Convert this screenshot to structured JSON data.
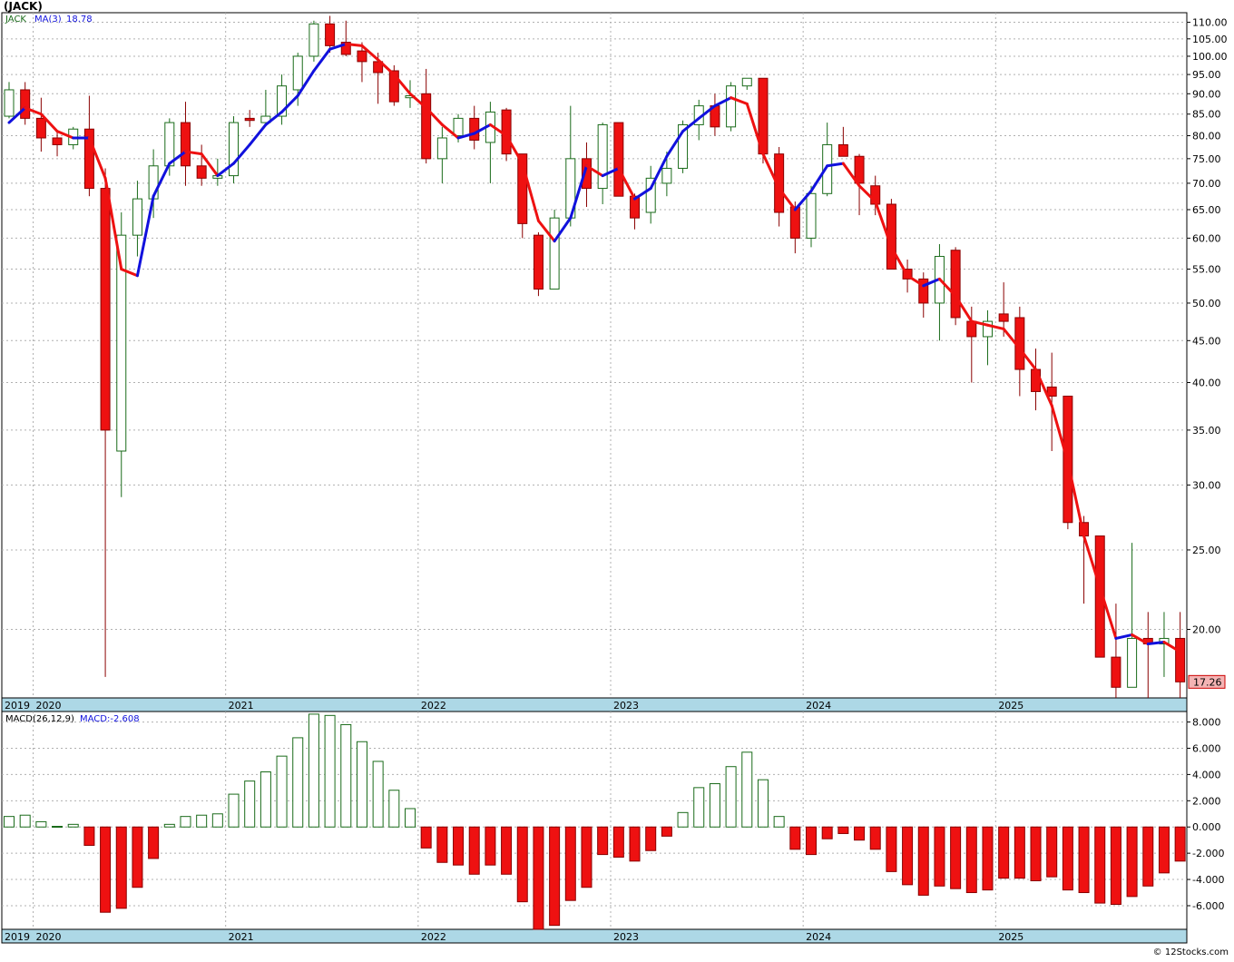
{
  "title": "(JACK)",
  "copyright": "© 12Stocks.com",
  "colors": {
    "up": "#ffffff",
    "up_stroke": "#1a6b1a",
    "down": "#ee1111",
    "down_stroke": "#8a0000",
    "ma_up": "#1111dd",
    "ma_down": "#ee1111",
    "axis_band": "#add8e6",
    "grid": "#b0b0b0",
    "price_tag_bg": "#f4b4b4"
  },
  "chart_data": [
    {
      "type": "candlestick",
      "scale": "log",
      "ylim": [
        16.5,
        113
      ],
      "yticks": [
        110,
        105,
        100,
        95,
        90,
        85,
        80,
        75,
        70,
        65,
        60,
        55,
        50,
        45,
        40,
        35,
        30,
        25,
        20
      ],
      "ytick_labels": [
        "110.00",
        "105.00",
        "100.00",
        "95.00",
        "90.00",
        "85.00",
        "80.00",
        "75.00",
        "70.00",
        "65.00",
        "60.00",
        "55.00",
        "50.00",
        "45.00",
        "40.00",
        "35.00",
        "30.00",
        "25.00",
        "20.00"
      ],
      "legend": {
        "symbol": "JACK",
        "ma_label": "MA(3)",
        "ma_value": "18.78"
      },
      "last_price_label": "17.26",
      "x_labels": [
        "2019",
        "2020",
        "2021",
        "2022",
        "2023",
        "2024",
        "2025"
      ],
      "x_label_months": [
        0,
        2,
        14,
        26,
        38,
        50,
        62
      ],
      "candles": [
        {
          "o": 84.5,
          "h": 93,
          "l": 84,
          "c": 91
        },
        {
          "o": 91,
          "h": 93,
          "l": 82.5,
          "c": 84
        },
        {
          "o": 84,
          "h": 89,
          "l": 76.5,
          "c": 79.5
        },
        {
          "o": 79.5,
          "h": 81,
          "l": 75.5,
          "c": 78
        },
        {
          "o": 78,
          "h": 82,
          "l": 77,
          "c": 81.5
        },
        {
          "o": 81.5,
          "h": 89.5,
          "l": 67.5,
          "c": 69
        },
        {
          "o": 69,
          "h": 73,
          "l": 17.5,
          "c": 35
        },
        {
          "o": 33,
          "h": 64.5,
          "l": 29,
          "c": 60.5
        },
        {
          "o": 60.5,
          "h": 70.5,
          "l": 57,
          "c": 67
        },
        {
          "o": 67,
          "h": 77,
          "l": 63.5,
          "c": 73.5
        },
        {
          "o": 73.5,
          "h": 84,
          "l": 71.5,
          "c": 83
        },
        {
          "o": 83,
          "h": 88,
          "l": 69.5,
          "c": 73.5
        },
        {
          "o": 73.5,
          "h": 78,
          "l": 69.5,
          "c": 71
        },
        {
          "o": 71,
          "h": 75,
          "l": 69.5,
          "c": 71.5
        },
        {
          "o": 71.5,
          "h": 84.5,
          "l": 70,
          "c": 83
        },
        {
          "o": 84,
          "h": 86,
          "l": 82,
          "c": 83.5
        },
        {
          "o": 83,
          "h": 91,
          "l": 83,
          "c": 84.5
        },
        {
          "o": 84.5,
          "h": 95,
          "l": 82.5,
          "c": 92
        },
        {
          "o": 91,
          "h": 101,
          "l": 87,
          "c": 100
        },
        {
          "o": 100,
          "h": 110.5,
          "l": 98.5,
          "c": 109.5
        },
        {
          "o": 109.5,
          "h": 112,
          "l": 101,
          "c": 103
        },
        {
          "o": 104,
          "h": 110.5,
          "l": 100,
          "c": 100.5
        },
        {
          "o": 101.5,
          "h": 104,
          "l": 93,
          "c": 98.5
        },
        {
          "o": 98.5,
          "h": 101,
          "l": 87.5,
          "c": 95.5
        },
        {
          "o": 96,
          "h": 97.5,
          "l": 87,
          "c": 88
        },
        {
          "o": 89,
          "h": 93.5,
          "l": 86.5,
          "c": 89.5
        },
        {
          "o": 90,
          "h": 96.5,
          "l": 74,
          "c": 75
        },
        {
          "o": 75,
          "h": 82,
          "l": 70,
          "c": 79.5
        },
        {
          "o": 80,
          "h": 85,
          "l": 78.5,
          "c": 84
        },
        {
          "o": 84,
          "h": 87,
          "l": 77,
          "c": 79
        },
        {
          "o": 78.5,
          "h": 88,
          "l": 70,
          "c": 85.5
        },
        {
          "o": 86,
          "h": 86.5,
          "l": 74.5,
          "c": 76
        },
        {
          "o": 76,
          "h": 76,
          "l": 60,
          "c": 62.5
        },
        {
          "o": 60.5,
          "h": 61,
          "l": 51,
          "c": 52
        },
        {
          "o": 52,
          "h": 65,
          "l": 52,
          "c": 63.5
        },
        {
          "o": 63.5,
          "h": 87,
          "l": 62,
          "c": 75
        },
        {
          "o": 75,
          "h": 78.5,
          "l": 65.5,
          "c": 69
        },
        {
          "o": 69,
          "h": 83,
          "l": 66,
          "c": 82.5
        },
        {
          "o": 83,
          "h": 83,
          "l": 67.5,
          "c": 67.5
        },
        {
          "o": 67.5,
          "h": 68,
          "l": 61.5,
          "c": 63.5
        },
        {
          "o": 64.5,
          "h": 73.5,
          "l": 62.5,
          "c": 71
        },
        {
          "o": 70,
          "h": 76.5,
          "l": 67.5,
          "c": 73
        },
        {
          "o": 73,
          "h": 83.5,
          "l": 72,
          "c": 82.5
        },
        {
          "o": 82.5,
          "h": 88.5,
          "l": 79,
          "c": 87
        },
        {
          "o": 87,
          "h": 90,
          "l": 80,
          "c": 82
        },
        {
          "o": 82,
          "h": 93,
          "l": 81,
          "c": 92
        },
        {
          "o": 92,
          "h": 94,
          "l": 91,
          "c": 94
        },
        {
          "o": 94,
          "h": 94,
          "l": 74,
          "c": 76
        },
        {
          "o": 76,
          "h": 77.5,
          "l": 62,
          "c": 64.5
        },
        {
          "o": 65.5,
          "h": 66.5,
          "l": 57.5,
          "c": 60
        },
        {
          "o": 60,
          "h": 69.5,
          "l": 58.5,
          "c": 68
        },
        {
          "o": 68,
          "h": 83,
          "l": 67.5,
          "c": 78
        },
        {
          "o": 78,
          "h": 82,
          "l": 75.5,
          "c": 75.5
        },
        {
          "o": 75.5,
          "h": 76,
          "l": 64,
          "c": 70
        },
        {
          "o": 69.5,
          "h": 71.5,
          "l": 64,
          "c": 66
        },
        {
          "o": 66,
          "h": 67,
          "l": 55,
          "c": 55
        },
        {
          "o": 55,
          "h": 56.5,
          "l": 51.5,
          "c": 53.5
        },
        {
          "o": 53.5,
          "h": 54.5,
          "l": 48,
          "c": 50
        },
        {
          "o": 50,
          "h": 59,
          "l": 45,
          "c": 57
        },
        {
          "o": 58,
          "h": 58.5,
          "l": 47,
          "c": 48
        },
        {
          "o": 47.5,
          "h": 49.5,
          "l": 40,
          "c": 45.5
        },
        {
          "o": 45.5,
          "h": 49,
          "l": 42,
          "c": 47.5
        },
        {
          "o": 48.5,
          "h": 53,
          "l": 45.5,
          "c": 47.5
        },
        {
          "o": 48,
          "h": 49.5,
          "l": 38.5,
          "c": 41.5
        },
        {
          "o": 41.5,
          "h": 44,
          "l": 37,
          "c": 39
        },
        {
          "o": 39.5,
          "h": 43.5,
          "l": 33,
          "c": 38.5
        },
        {
          "o": 38.5,
          "h": 38.5,
          "l": 26.5,
          "c": 27
        },
        {
          "o": 27,
          "h": 27.5,
          "l": 21.5,
          "c": 26
        },
        {
          "o": 26,
          "h": 26,
          "l": 18.5,
          "c": 18.5
        },
        {
          "o": 18.5,
          "h": 21.5,
          "l": 16.5,
          "c": 17
        },
        {
          "o": 17,
          "h": 25.5,
          "l": 17,
          "c": 19.5
        },
        {
          "o": 19.5,
          "h": 21,
          "l": 16.5,
          "c": 19.2
        },
        {
          "o": 19.2,
          "h": 21,
          "l": 17.5,
          "c": 19.5
        },
        {
          "o": 19.5,
          "h": 21,
          "l": 16.5,
          "c": 17.26
        }
      ],
      "ma3": [
        83,
        86.5,
        85,
        81,
        79.5,
        79.5,
        71,
        55,
        54,
        67.5,
        74,
        76.5,
        76,
        71.5,
        74,
        78,
        82.5,
        85.5,
        89.5,
        96,
        102,
        103.5,
        103,
        99,
        95,
        90,
        86.5,
        82.5,
        79.5,
        80.5,
        82.5,
        80,
        74,
        63,
        59.5,
        63.5,
        73.5,
        71.5,
        73,
        67,
        69,
        75.5,
        81,
        84,
        87,
        89,
        87.5,
        76,
        69,
        65,
        68.5,
        73.5,
        74,
        69.5,
        66.5,
        58.5,
        54,
        52.5,
        53.5,
        51,
        47.5,
        47,
        46.5,
        44,
        41.5,
        37.5,
        32,
        26,
        22.5,
        19.5,
        19.7,
        19.2,
        19.3,
        18.78
      ]
    },
    {
      "type": "bar",
      "title": "MACD(26,12,9)",
      "legend": {
        "macd_label": "MACD:-2.608"
      },
      "ylim": [
        -7.8,
        8.8
      ],
      "yticks": [
        8,
        6,
        4,
        2,
        0,
        -2,
        -4,
        -6
      ],
      "ytick_labels": [
        "8.000",
        "6.000",
        "4.000",
        "2.000",
        "0.000",
        "-2.000",
        "-4.000",
        "-6.000"
      ],
      "x_labels": [
        "2019",
        "2020",
        "2021",
        "2022",
        "2023",
        "2024",
        "2025"
      ],
      "values": [
        0.8,
        0.9,
        0.4,
        0.05,
        0.2,
        -1.4,
        -6.5,
        -6.2,
        -4.6,
        -2.4,
        0.2,
        0.8,
        0.9,
        1.0,
        2.5,
        3.5,
        4.2,
        5.4,
        6.8,
        8.6,
        8.5,
        7.8,
        6.5,
        5.0,
        2.8,
        1.4,
        -1.6,
        -2.7,
        -2.9,
        -3.6,
        -2.9,
        -3.6,
        -5.7,
        -7.8,
        -7.5,
        -5.6,
        -4.6,
        -2.1,
        -2.3,
        -2.6,
        -1.8,
        -0.7,
        1.1,
        3.0,
        3.3,
        4.6,
        5.7,
        3.6,
        0.8,
        -1.7,
        -2.1,
        -0.9,
        -0.5,
        -1.0,
        -1.7,
        -3.4,
        -4.4,
        -5.2,
        -4.5,
        -4.7,
        -5.0,
        -4.8,
        -3.9,
        -3.9,
        -4.1,
        -3.8,
        -4.8,
        -5.0,
        -5.8,
        -5.9,
        -5.3,
        -4.5,
        -3.5,
        -2.6
      ]
    }
  ]
}
